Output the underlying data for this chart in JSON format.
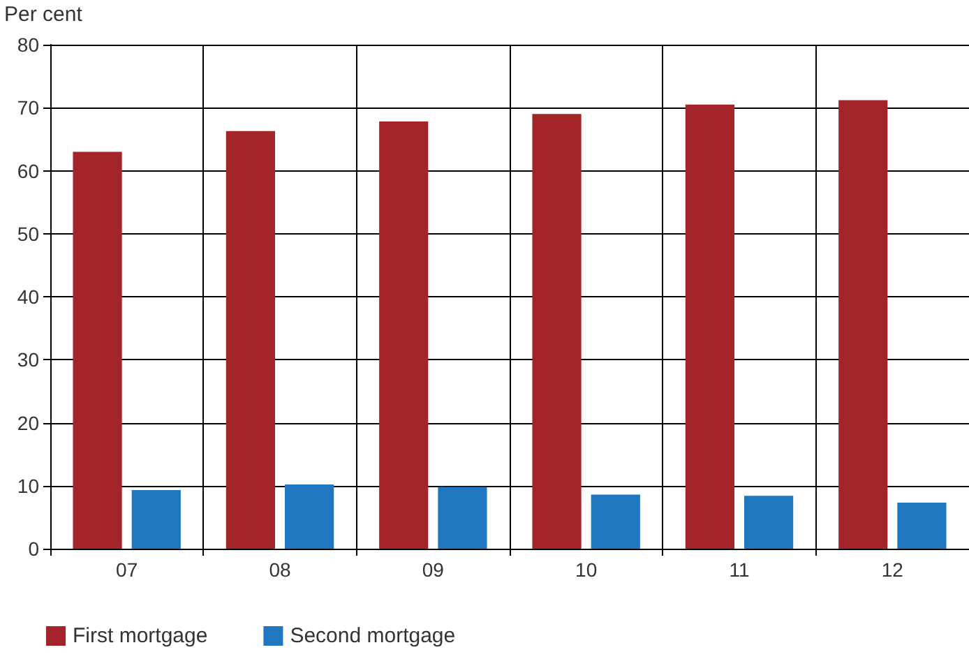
{
  "chart_data": {
    "type": "bar",
    "ylabel": "Per cent",
    "categories": [
      "07",
      "08",
      "09",
      "10",
      "11",
      "12"
    ],
    "series": [
      {
        "name": "First mortgage",
        "color": "#a3252a",
        "values": [
          63.0,
          66.3,
          67.8,
          69.0,
          70.5,
          71.2
        ]
      },
      {
        "name": "Second mortgage",
        "color": "#1f77c0",
        "values": [
          9.3,
          10.2,
          9.8,
          8.6,
          8.4,
          7.3
        ]
      }
    ],
    "ylim": [
      0,
      80
    ],
    "yticks": [
      0,
      10,
      20,
      30,
      40,
      50,
      60,
      70,
      80
    ],
    "grid": true,
    "legend": "bottom left"
  }
}
